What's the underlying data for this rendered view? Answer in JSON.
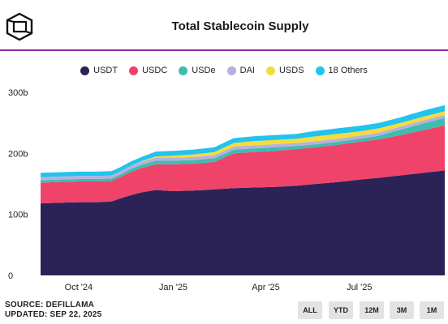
{
  "title": "Total Stablecoin Supply",
  "footer": {
    "source": "SOURCE: DEFILLAMA",
    "updated": "UPDATED: SEP 22, 2025"
  },
  "range_buttons": [
    "ALL",
    "YTD",
    "12M",
    "3M",
    "1M"
  ],
  "colors": {
    "accent_rule": "#8a2aa8",
    "USDT": "#2b2358",
    "USDC": "#f0436a",
    "USDe": "#3dbdb0",
    "DAI": "#b8b0dc",
    "USDS": "#f5dc3a",
    "Others": "#22c3ee"
  },
  "chart_data": {
    "type": "area",
    "stacked": true,
    "title": "Total Stablecoin Supply",
    "y_unit": "b",
    "ylim": [
      0,
      300
    ],
    "y_ticks": [
      "0",
      "100b",
      "200b",
      "300b"
    ],
    "x_tick_labels": [
      "Oct '24",
      "Jan '25",
      "Apr '25",
      "Jul '25"
    ],
    "grid": false,
    "legend_position": "top",
    "legend": [
      "USDT",
      "USDC",
      "USDe",
      "DAI",
      "USDS",
      "18 Others"
    ],
    "x": [
      "2024-08-25",
      "2024-09-10",
      "2024-10-01",
      "2024-10-20",
      "2024-11-02",
      "2024-11-10",
      "2024-11-20",
      "2024-12-01",
      "2024-12-15",
      "2025-01-01",
      "2025-01-20",
      "2025-02-10",
      "2025-03-01",
      "2025-03-20",
      "2025-04-10",
      "2025-05-01",
      "2025-05-20",
      "2025-06-10",
      "2025-07-01",
      "2025-07-20",
      "2025-08-10",
      "2025-09-01",
      "2025-09-22"
    ],
    "series": [
      {
        "name": "USDT",
        "values": [
          118,
          119,
          120,
          120,
          121,
          126,
          131,
          136,
          140,
          138,
          139,
          141,
          143,
          144,
          145,
          147,
          150,
          153,
          157,
          160,
          164,
          168,
          172
        ]
      },
      {
        "name": "USDC",
        "values": [
          34,
          34,
          34,
          34,
          34,
          35,
          38,
          40,
          42,
          44,
          44,
          45,
          57,
          58,
          59,
          60,
          60,
          61,
          62,
          63,
          66,
          70,
          74
        ]
      },
      {
        "name": "USDe",
        "values": [
          4,
          4,
          4,
          4,
          4,
          4,
          5,
          5,
          6,
          6,
          6,
          6,
          6,
          6,
          6,
          5,
          5,
          5,
          5,
          6,
          9,
          11,
          12
        ]
      },
      {
        "name": "DAI",
        "values": [
          5,
          5,
          5,
          5,
          5,
          5,
          5,
          5,
          5,
          5,
          5,
          5,
          5,
          5,
          5,
          5,
          5,
          5,
          5,
          5,
          5,
          5,
          5
        ]
      },
      {
        "name": "USDS",
        "values": [
          0,
          0,
          0,
          0,
          0,
          0,
          0,
          1,
          2,
          3,
          4,
          5,
          6,
          7,
          7,
          7,
          8,
          8,
          7,
          7,
          6,
          6,
          6
        ]
      },
      {
        "name": "18 Others",
        "values": [
          7,
          7,
          7,
          7,
          7,
          7,
          7,
          7,
          8,
          8,
          8,
          8,
          8,
          8,
          8,
          8,
          9,
          9,
          9,
          9,
          9,
          10,
          10
        ]
      }
    ]
  }
}
